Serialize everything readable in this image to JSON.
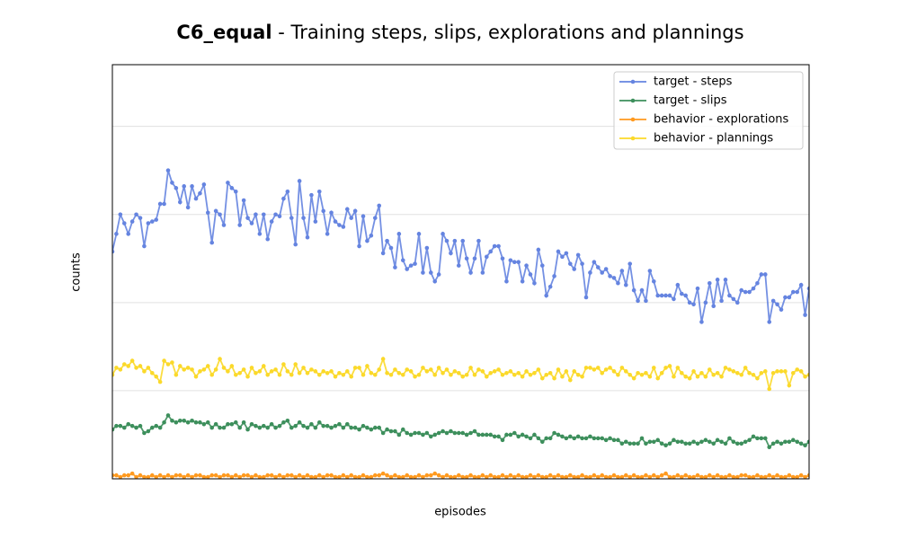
{
  "chart_data": {
    "type": "line",
    "title": {
      "name": "C6_equal",
      "text": "- Training steps, slips, explorations and plannings"
    },
    "x_label": "episodes",
    "y_label": "counts",
    "xlim": [
      1,
      176
    ],
    "ylim": [
      0,
      23.5
    ],
    "xticks": [
      20,
      40,
      60,
      80,
      100,
      120,
      140,
      160
    ],
    "yticks": [
      0,
      5,
      10,
      15,
      20
    ],
    "grid": true,
    "legend": "upper right",
    "x": [
      1,
      2,
      3,
      4,
      5,
      6,
      7,
      8,
      9,
      10,
      11,
      12,
      13,
      14,
      15,
      16,
      17,
      18,
      19,
      20,
      21,
      22,
      23,
      24,
      25,
      26,
      27,
      28,
      29,
      30,
      31,
      32,
      33,
      34,
      35,
      36,
      37,
      38,
      39,
      40,
      41,
      42,
      43,
      44,
      45,
      46,
      47,
      48,
      49,
      50,
      51,
      52,
      53,
      54,
      55,
      56,
      57,
      58,
      59,
      60,
      61,
      62,
      63,
      64,
      65,
      66,
      67,
      68,
      69,
      70,
      71,
      72,
      73,
      74,
      75,
      76,
      77,
      78,
      79,
      80,
      81,
      82,
      83,
      84,
      85,
      86,
      87,
      88,
      89,
      90,
      91,
      92,
      93,
      94,
      95,
      96,
      97,
      98,
      99,
      100,
      101,
      102,
      103,
      104,
      105,
      106,
      107,
      108,
      109,
      110,
      111,
      112,
      113,
      114,
      115,
      116,
      117,
      118,
      119,
      120,
      121,
      122,
      123,
      124,
      125,
      126,
      127,
      128,
      129,
      130,
      131,
      132,
      133,
      134,
      135,
      136,
      137,
      138,
      139,
      140,
      141,
      142,
      143,
      144,
      145,
      146,
      147,
      148,
      149,
      150,
      151,
      152,
      153,
      154,
      155,
      156,
      157,
      158,
      159,
      160,
      161,
      162,
      163,
      164,
      165,
      166,
      167,
      168,
      169,
      170,
      171,
      172,
      173,
      174,
      175,
      176
    ],
    "series": [
      {
        "name": "target - steps",
        "color": "#6584e0",
        "values": [
          12.9,
          13.9,
          15.0,
          14.5,
          13.9,
          14.6,
          15.0,
          14.8,
          13.2,
          14.5,
          14.6,
          14.7,
          15.6,
          15.6,
          17.5,
          16.8,
          16.5,
          15.7,
          16.6,
          15.4,
          16.6,
          15.9,
          16.2,
          16.7,
          15.1,
          13.4,
          15.2,
          15.0,
          14.4,
          16.8,
          16.5,
          16.3,
          14.4,
          15.8,
          14.8,
          14.5,
          15.0,
          13.9,
          15.0,
          13.6,
          14.6,
          15.0,
          14.9,
          15.9,
          16.3,
          14.8,
          13.3,
          16.9,
          14.8,
          13.7,
          16.1,
          14.6,
          16.3,
          15.2,
          13.9,
          15.1,
          14.6,
          14.4,
          14.3,
          15.3,
          14.8,
          15.2,
          13.2,
          14.9,
          13.5,
          13.8,
          14.8,
          15.5,
          12.8,
          13.5,
          13.1,
          12.0,
          13.9,
          12.4,
          11.9,
          12.1,
          12.2,
          13.9,
          11.7,
          13.1,
          11.7,
          11.2,
          11.6,
          13.9,
          13.5,
          12.8,
          13.5,
          12.1,
          13.5,
          12.5,
          11.7,
          12.5,
          13.5,
          11.7,
          12.6,
          12.9,
          13.2,
          13.2,
          12.5,
          11.2,
          12.4,
          12.3,
          12.3,
          11.2,
          12.1,
          11.6,
          11.1,
          13.0,
          12.1,
          10.4,
          10.9,
          11.5,
          12.9,
          12.6,
          12.8,
          12.2,
          11.9,
          12.7,
          12.2,
          10.3,
          11.7,
          12.3,
          12.0,
          11.7,
          11.9,
          11.5,
          11.4,
          11.1,
          11.8,
          11.0,
          12.2,
          10.7,
          10.1,
          10.7,
          10.1,
          11.8,
          11.2,
          10.4,
          10.4,
          10.4,
          10.4,
          10.2,
          11.0,
          10.5,
          10.4,
          10.0,
          9.9,
          10.8,
          8.9,
          10.0,
          11.1,
          9.8,
          11.3,
          10.1,
          11.3,
          10.4,
          10.2,
          10.0,
          10.7,
          10.6,
          10.6,
          10.8,
          11.1,
          11.6,
          11.6,
          8.9,
          10.1,
          9.9,
          9.6,
          10.3,
          10.3,
          10.6,
          10.6,
          11.0,
          9.3,
          10.8
        ]
      },
      {
        "name": "target - slips",
        "color": "#3d8f5c",
        "values": [
          2.8,
          3.0,
          3.0,
          2.9,
          3.1,
          3.0,
          2.9,
          3.0,
          2.6,
          2.7,
          2.9,
          3.0,
          2.9,
          3.2,
          3.6,
          3.3,
          3.2,
          3.3,
          3.3,
          3.2,
          3.3,
          3.2,
          3.2,
          3.1,
          3.2,
          2.9,
          3.1,
          2.9,
          2.9,
          3.1,
          3.1,
          3.2,
          2.9,
          3.2,
          2.8,
          3.1,
          3.0,
          2.9,
          3.0,
          2.9,
          3.1,
          2.9,
          3.0,
          3.2,
          3.3,
          2.9,
          3.0,
          3.2,
          3.0,
          2.9,
          3.1,
          2.9,
          3.2,
          3.0,
          3.0,
          2.9,
          3.0,
          3.1,
          2.9,
          3.1,
          2.9,
          2.9,
          2.8,
          3.0,
          2.9,
          2.8,
          2.9,
          2.9,
          2.6,
          2.8,
          2.7,
          2.7,
          2.5,
          2.8,
          2.6,
          2.5,
          2.6,
          2.6,
          2.5,
          2.6,
          2.4,
          2.5,
          2.6,
          2.7,
          2.6,
          2.7,
          2.6,
          2.6,
          2.6,
          2.5,
          2.6,
          2.7,
          2.5,
          2.5,
          2.5,
          2.5,
          2.4,
          2.4,
          2.2,
          2.5,
          2.5,
          2.6,
          2.4,
          2.5,
          2.4,
          2.3,
          2.5,
          2.3,
          2.1,
          2.3,
          2.3,
          2.6,
          2.5,
          2.4,
          2.3,
          2.4,
          2.3,
          2.4,
          2.3,
          2.3,
          2.4,
          2.3,
          2.3,
          2.3,
          2.2,
          2.3,
          2.2,
          2.2,
          2.0,
          2.1,
          2.0,
          2.0,
          2.0,
          2.3,
          2.0,
          2.1,
          2.1,
          2.2,
          2.0,
          1.9,
          2.0,
          2.2,
          2.1,
          2.1,
          2.0,
          2.0,
          2.1,
          2.0,
          2.1,
          2.2,
          2.1,
          2.0,
          2.2,
          2.1,
          2.0,
          2.3,
          2.1,
          2.0,
          2.0,
          2.1,
          2.2,
          2.4,
          2.3,
          2.3,
          2.3,
          1.8,
          2.0,
          2.1,
          2.0,
          2.1,
          2.1,
          2.2,
          2.1,
          2.0,
          1.9,
          2.1
        ]
      },
      {
        "name": "behavior - explorations",
        "color": "#ff9a1f",
        "values": [
          0.2,
          0.2,
          0.1,
          0.2,
          0.2,
          0.3,
          0.1,
          0.2,
          0.1,
          0.1,
          0.2,
          0.1,
          0.2,
          0.1,
          0.2,
          0.1,
          0.2,
          0.2,
          0.1,
          0.2,
          0.1,
          0.2,
          0.2,
          0.1,
          0.1,
          0.2,
          0.2,
          0.1,
          0.2,
          0.2,
          0.1,
          0.2,
          0.1,
          0.2,
          0.2,
          0.1,
          0.2,
          0.1,
          0.1,
          0.2,
          0.2,
          0.1,
          0.2,
          0.1,
          0.2,
          0.2,
          0.1,
          0.2,
          0.1,
          0.2,
          0.1,
          0.1,
          0.2,
          0.1,
          0.2,
          0.2,
          0.1,
          0.1,
          0.2,
          0.1,
          0.2,
          0.1,
          0.1,
          0.2,
          0.1,
          0.1,
          0.2,
          0.2,
          0.3,
          0.2,
          0.1,
          0.2,
          0.1,
          0.1,
          0.2,
          0.1,
          0.1,
          0.2,
          0.1,
          0.2,
          0.2,
          0.3,
          0.2,
          0.1,
          0.2,
          0.1,
          0.1,
          0.2,
          0.1,
          0.1,
          0.2,
          0.1,
          0.1,
          0.2,
          0.1,
          0.2,
          0.1,
          0.1,
          0.2,
          0.1,
          0.2,
          0.1,
          0.2,
          0.1,
          0.1,
          0.2,
          0.1,
          0.2,
          0.1,
          0.1,
          0.2,
          0.1,
          0.2,
          0.1,
          0.1,
          0.2,
          0.1,
          0.1,
          0.2,
          0.1,
          0.1,
          0.2,
          0.1,
          0.2,
          0.1,
          0.1,
          0.2,
          0.1,
          0.1,
          0.2,
          0.1,
          0.2,
          0.1,
          0.1,
          0.2,
          0.1,
          0.2,
          0.1,
          0.2,
          0.3,
          0.1,
          0.1,
          0.2,
          0.1,
          0.2,
          0.1,
          0.1,
          0.2,
          0.1,
          0.1,
          0.2,
          0.1,
          0.2,
          0.1,
          0.1,
          0.2,
          0.1,
          0.1,
          0.2,
          0.2,
          0.1,
          0.1,
          0.2,
          0.1,
          0.1,
          0.2,
          0.1,
          0.2,
          0.1,
          0.1,
          0.2,
          0.1,
          0.1,
          0.2,
          0.1,
          0.2
        ]
      },
      {
        "name": "behavior - plannings",
        "color": "#fbd92a",
        "values": [
          5.9,
          6.3,
          6.2,
          6.5,
          6.4,
          6.7,
          6.3,
          6.4,
          6.1,
          6.3,
          6.0,
          5.8,
          5.5,
          6.7,
          6.5,
          6.6,
          5.9,
          6.4,
          6.2,
          6.3,
          6.2,
          5.8,
          6.1,
          6.2,
          6.4,
          5.9,
          6.2,
          6.8,
          6.3,
          6.1,
          6.4,
          5.9,
          6.0,
          6.2,
          5.8,
          6.3,
          6.0,
          6.1,
          6.4,
          5.9,
          6.1,
          6.2,
          5.9,
          6.5,
          6.1,
          5.9,
          6.5,
          6.0,
          6.3,
          6.0,
          6.2,
          6.1,
          5.9,
          6.1,
          6.0,
          6.1,
          5.8,
          6.0,
          5.9,
          6.1,
          5.8,
          6.3,
          6.3,
          5.9,
          6.4,
          6.0,
          5.9,
          6.2,
          6.8,
          6.0,
          5.9,
          6.2,
          6.0,
          5.9,
          6.2,
          6.1,
          5.8,
          5.9,
          6.3,
          6.1,
          6.2,
          5.9,
          6.3,
          6.0,
          6.2,
          5.9,
          6.1,
          6.0,
          5.8,
          5.9,
          6.3,
          5.9,
          6.2,
          6.1,
          5.8,
          6.0,
          6.1,
          6.2,
          5.9,
          6.0,
          6.1,
          5.9,
          6.0,
          5.8,
          6.1,
          5.9,
          6.0,
          6.2,
          5.7,
          5.9,
          6.0,
          5.7,
          6.2,
          5.8,
          6.1,
          5.6,
          6.1,
          5.9,
          5.8,
          6.3,
          6.3,
          6.2,
          6.3,
          6.0,
          6.2,
          6.3,
          6.1,
          5.9,
          6.3,
          6.1,
          5.9,
          5.7,
          6.0,
          5.9,
          6.0,
          5.8,
          6.3,
          5.7,
          6.0,
          6.3,
          6.4,
          5.8,
          6.3,
          6.0,
          5.8,
          5.7,
          6.1,
          5.8,
          6.0,
          5.8,
          6.2,
          5.9,
          6.0,
          5.8,
          6.3,
          6.2,
          6.1,
          6.0,
          5.9,
          6.3,
          6.0,
          5.9,
          5.7,
          6.0,
          6.1,
          5.1,
          6.0,
          6.1,
          6.1,
          6.1,
          5.3,
          6.0,
          6.2,
          6.1,
          5.8,
          5.9
        ]
      }
    ]
  }
}
